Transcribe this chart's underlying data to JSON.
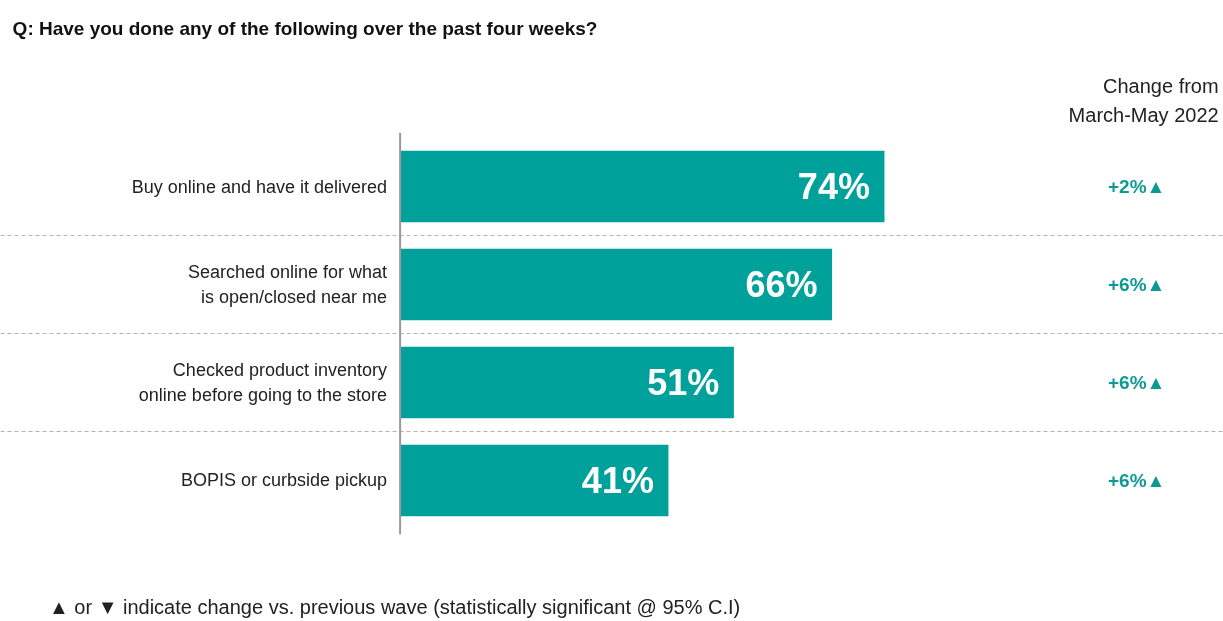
{
  "chart_data": {
    "type": "bar",
    "orientation": "horizontal",
    "title": "Q: Have you done any of the following over the past four weeks?",
    "categories": [
      "Buy online and have it delivered",
      "Searched online for what\nis open/closed near me",
      "Checked product inventory\nonline before going to the store",
      "BOPIS or curbside pickup"
    ],
    "values": [
      74,
      66,
      51,
      41
    ],
    "value_labels": [
      "74%",
      "66%",
      "51%",
      "41%"
    ],
    "color": "#00a19b",
    "grid": "y",
    "annotations": [
      "Change from\nMarch-May 2022",
      "+2%▲",
      "+6%▲",
      "+6%▲",
      "+6%▲",
      "▲ or ▼ indicate change vs. previous wave (statistically significant @ 95% C.I)"
    ]
  }
}
